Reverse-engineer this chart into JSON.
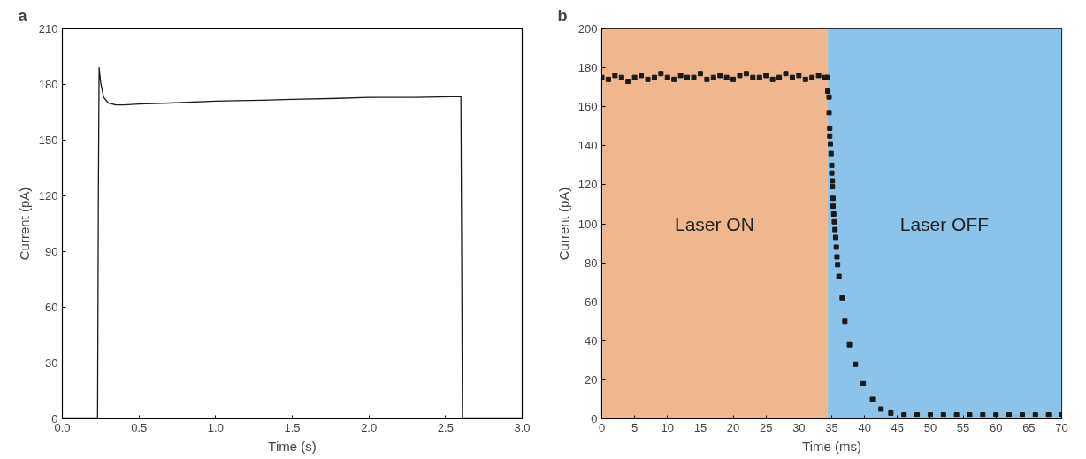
{
  "chart_data": [
    {
      "type": "line",
      "title": "a",
      "xlabel": "Time (s)",
      "ylabel": "Current (pA)",
      "xlim": [
        0,
        3
      ],
      "ylim": [
        0,
        210
      ],
      "xticks": [
        {
          "value": 0,
          "label": "0.0"
        },
        {
          "value": 0.5,
          "label": "0.5"
        },
        {
          "value": 1,
          "label": "1.0"
        },
        {
          "value": 1.5,
          "label": "1.5"
        },
        {
          "value": 2,
          "label": "2.0"
        },
        {
          "value": 2.5,
          "label": "2.5"
        },
        {
          "value": 3,
          "label": "3.0"
        }
      ],
      "yticks": [
        0,
        30,
        60,
        90,
        120,
        150,
        180,
        210
      ],
      "grid": false,
      "marker": "none",
      "line_style": "solid",
      "series": [
        {
          "color": "#1a1a1a",
          "x": [
            0,
            0.1,
            0.2,
            0.23,
            0.235,
            0.24,
            0.25,
            0.27,
            0.3,
            0.35,
            0.4,
            0.5,
            0.7,
            1.0,
            1.3,
            1.5,
            1.8,
            2.0,
            2.3,
            2.6,
            2.605,
            2.61,
            2.8,
            3.0
          ],
          "values": [
            0,
            0,
            0,
            0,
            120,
            189,
            181,
            173,
            170,
            169,
            169,
            169.5,
            170,
            171,
            171.5,
            172,
            172.5,
            173,
            173,
            173.5,
            90,
            0,
            0,
            0
          ]
        }
      ]
    },
    {
      "type": "scatter",
      "title": "b",
      "xlabel": "Time (ms)",
      "ylabel": "Current (pA)",
      "xlim": [
        0,
        70
      ],
      "ylim": [
        0,
        200
      ],
      "xticks": [
        0,
        5,
        10,
        15,
        20,
        25,
        30,
        35,
        40,
        45,
        50,
        55,
        60,
        65,
        70
      ],
      "yticks": [
        0,
        20,
        40,
        60,
        80,
        100,
        120,
        140,
        160,
        180,
        200
      ],
      "grid": false,
      "marker": "square",
      "bands": [
        {
          "axis": "x",
          "from": 0,
          "to": 34.3,
          "label": "Laser ON",
          "color": "#f0b78f"
        },
        {
          "axis": "x",
          "from": 34.3,
          "to": 70,
          "label": "Laser OFF",
          "color": "#8cc3ea"
        }
      ],
      "series": [
        {
          "color": "#1a1a1a",
          "x": [
            0,
            1,
            2,
            3,
            4,
            5,
            6,
            7,
            8,
            9,
            10,
            11,
            12,
            13,
            14,
            15,
            16,
            17,
            18,
            19,
            20,
            21,
            22,
            23,
            24,
            25,
            26,
            27,
            28,
            29,
            30,
            31,
            32,
            33,
            34,
            34.4,
            34.4,
            34.6,
            34.6,
            34.7,
            34.7,
            34.8,
            34.9,
            35.0,
            35.0,
            35.1,
            35.1,
            35.2,
            35.2,
            35.3,
            35.4,
            35.5,
            35.6,
            35.7,
            35.8,
            35.9,
            36.1,
            36.6,
            37.0,
            37.7,
            38.6,
            39.8,
            41.2,
            42.5,
            44,
            46,
            48,
            50,
            52,
            54,
            56,
            58,
            60,
            62,
            64,
            66,
            68,
            70
          ],
          "values": [
            175,
            174,
            176,
            175,
            173,
            175,
            176,
            174,
            175,
            177,
            175,
            174,
            176,
            175,
            175,
            177,
            174,
            175,
            176,
            175,
            174,
            176,
            177,
            175,
            175,
            176,
            174,
            175,
            177,
            175,
            176,
            174,
            175,
            176,
            175,
            175,
            168,
            165,
            157,
            149,
            145,
            141,
            136,
            130,
            126,
            122,
            119,
            113,
            109,
            105,
            101,
            97,
            93,
            88,
            83,
            79,
            73,
            62,
            50,
            38,
            28,
            18,
            10,
            5,
            3,
            2,
            2,
            2,
            2,
            2,
            2,
            2,
            2,
            2,
            2,
            2,
            2,
            2
          ]
        }
      ]
    }
  ]
}
